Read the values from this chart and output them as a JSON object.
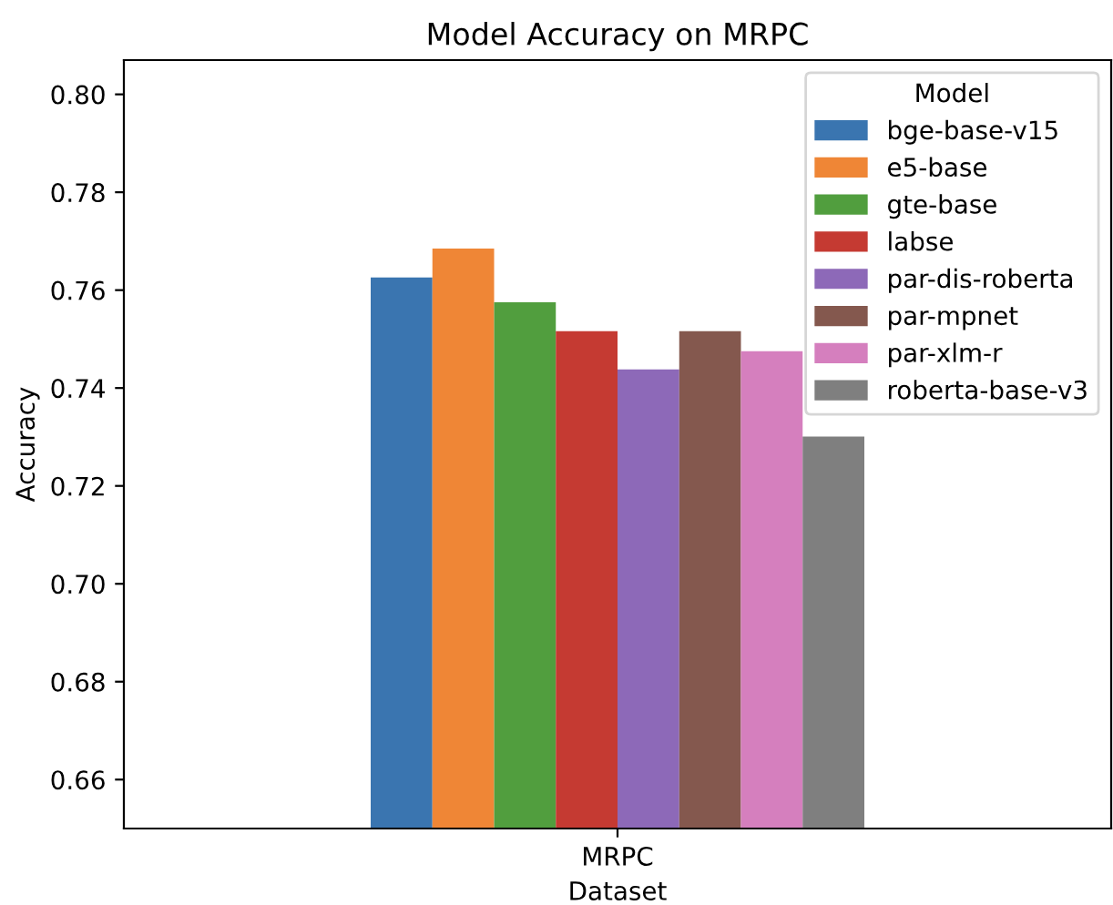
{
  "chart_data": {
    "type": "bar",
    "title": "Model Accuracy on MRPC",
    "xlabel": "Dataset",
    "ylabel": "Accuracy",
    "legend_title": "Model",
    "legend": "top right",
    "categories": [
      "MRPC"
    ],
    "series": [
      {
        "name": "bge-base-v15",
        "color": "#3a75b0",
        "values": [
          0.7626
        ]
      },
      {
        "name": "e5-base",
        "color": "#ef8636",
        "values": [
          0.7685
        ]
      },
      {
        "name": "gte-base",
        "color": "#519e3e",
        "values": [
          0.7575
        ]
      },
      {
        "name": "labse",
        "color": "#c53a32",
        "values": [
          0.7516
        ]
      },
      {
        "name": "par-dis-roberta",
        "color": "#8d69b8",
        "values": [
          0.7438
        ]
      },
      {
        "name": "par-mpnet",
        "color": "#84584e",
        "values": [
          0.7516
        ]
      },
      {
        "name": "par-xlm-r",
        "color": "#d57fbe",
        "values": [
          0.7475
        ]
      },
      {
        "name": "roberta-base-v3",
        "color": "#7f7f7f",
        "values": [
          0.7301
        ]
      }
    ],
    "ylim": [
      0.65,
      0.807
    ],
    "yticks": [
      {
        "value": 0.66,
        "label": "0.66"
      },
      {
        "value": 0.68,
        "label": "0.68"
      },
      {
        "value": 0.7,
        "label": "0.70"
      },
      {
        "value": 0.72,
        "label": "0.72"
      },
      {
        "value": 0.74,
        "label": "0.74"
      },
      {
        "value": 0.76,
        "label": "0.76"
      },
      {
        "value": 0.78,
        "label": "0.78"
      },
      {
        "value": 0.8,
        "label": "0.80"
      }
    ],
    "grid": false
  }
}
